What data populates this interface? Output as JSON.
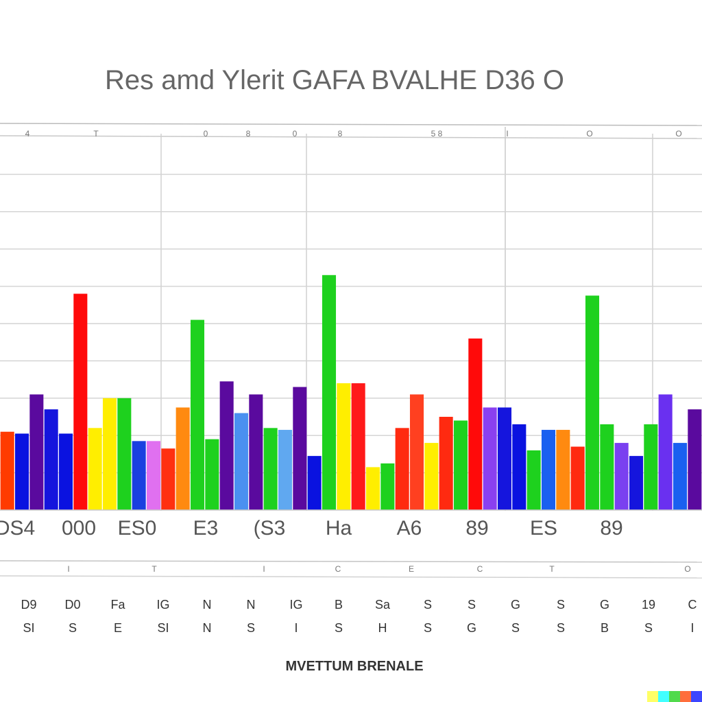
{
  "chart_data": {
    "type": "bar",
    "title": "Res amd Ylerit GAFA BVALHE D36 O",
    "xlabel": "MVETTUM BRENALE",
    "ylabel": "",
    "ylim": [
      0,
      10
    ],
    "grid": true,
    "legend": "none",
    "top_ticks": [
      "4",
      "T",
      "0",
      "8",
      "0",
      "8",
      "5 8",
      "I",
      "O",
      "O"
    ],
    "mid_ticks": [
      "I",
      "T",
      "I",
      "C",
      "E",
      "C",
      "T",
      "O"
    ],
    "categories": [
      "DS4",
      "000",
      "ES0",
      "E3",
      "(S3",
      "Ha",
      "A6",
      "89",
      "ES",
      "89"
    ],
    "sub_labels_row1": [
      "D9",
      "D0",
      "Fa",
      "IG",
      "N",
      "N",
      "IG",
      "B",
      "Sa",
      "S",
      "S",
      "G",
      "S",
      "G",
      "19",
      "C"
    ],
    "sub_labels_row2": [
      "SI",
      "S",
      "E",
      "SI",
      "N",
      "S",
      "I",
      "S",
      "H",
      "S",
      "G",
      "S",
      "S",
      "B",
      "S",
      "I"
    ],
    "bars": [
      {
        "value": 2.1,
        "color": "#ff3b00"
      },
      {
        "value": 2.05,
        "color": "#0a12e0"
      },
      {
        "value": 3.1,
        "color": "#5a0a9e"
      },
      {
        "value": 2.7,
        "color": "#1515dd"
      },
      {
        "value": 2.05,
        "color": "#0a12e0"
      },
      {
        "value": 5.8,
        "color": "#ff0a0a"
      },
      {
        "value": 2.2,
        "color": "#ffee00"
      },
      {
        "value": 3.0,
        "color": "#ffee00"
      },
      {
        "value": 3.0,
        "color": "#1ed11e"
      },
      {
        "value": 1.85,
        "color": "#1a40e0"
      },
      {
        "value": 1.85,
        "color": "#e070f0"
      },
      {
        "value": 1.65,
        "color": "#ff3010"
      },
      {
        "value": 2.75,
        "color": "#ff8a10"
      },
      {
        "value": 5.1,
        "color": "#1ed11e"
      },
      {
        "value": 1.9,
        "color": "#1ed11e"
      },
      {
        "value": 3.45,
        "color": "#5a0a9e"
      },
      {
        "value": 2.6,
        "color": "#4a90f0"
      },
      {
        "value": 3.1,
        "color": "#5a0a9e"
      },
      {
        "value": 2.2,
        "color": "#1ed11e"
      },
      {
        "value": 2.15,
        "color": "#60a8f0"
      },
      {
        "value": 3.3,
        "color": "#5a0a9e"
      },
      {
        "value": 1.45,
        "color": "#0a12e0"
      },
      {
        "value": 6.3,
        "color": "#1ed11e"
      },
      {
        "value": 3.4,
        "color": "#ffee00"
      },
      {
        "value": 3.4,
        "color": "#ff1a1a"
      },
      {
        "value": 1.15,
        "color": "#ffee00"
      },
      {
        "value": 1.25,
        "color": "#1ed11e"
      },
      {
        "value": 2.2,
        "color": "#ff2a10"
      },
      {
        "value": 3.1,
        "color": "#ff4020"
      },
      {
        "value": 1.8,
        "color": "#ffee00"
      },
      {
        "value": 2.5,
        "color": "#ff2a10"
      },
      {
        "value": 2.4,
        "color": "#1ed11e"
      },
      {
        "value": 4.6,
        "color": "#ff0a0a"
      },
      {
        "value": 2.75,
        "color": "#8a40f0"
      },
      {
        "value": 2.75,
        "color": "#1515dd"
      },
      {
        "value": 2.3,
        "color": "#0a12e0"
      },
      {
        "value": 1.6,
        "color": "#1ed11e"
      },
      {
        "value": 2.15,
        "color": "#1a60f0"
      },
      {
        "value": 2.15,
        "color": "#ff8a10"
      },
      {
        "value": 1.7,
        "color": "#ff2a10"
      },
      {
        "value": 5.75,
        "color": "#1ed11e"
      },
      {
        "value": 2.3,
        "color": "#1ed11e"
      },
      {
        "value": 1.8,
        "color": "#7a40f0"
      },
      {
        "value": 1.45,
        "color": "#1515dd"
      },
      {
        "value": 2.3,
        "color": "#1ed11e"
      },
      {
        "value": 3.1,
        "color": "#6a30f0"
      },
      {
        "value": 1.8,
        "color": "#1a60f0"
      },
      {
        "value": 2.7,
        "color": "#5a0a9e"
      }
    ]
  }
}
